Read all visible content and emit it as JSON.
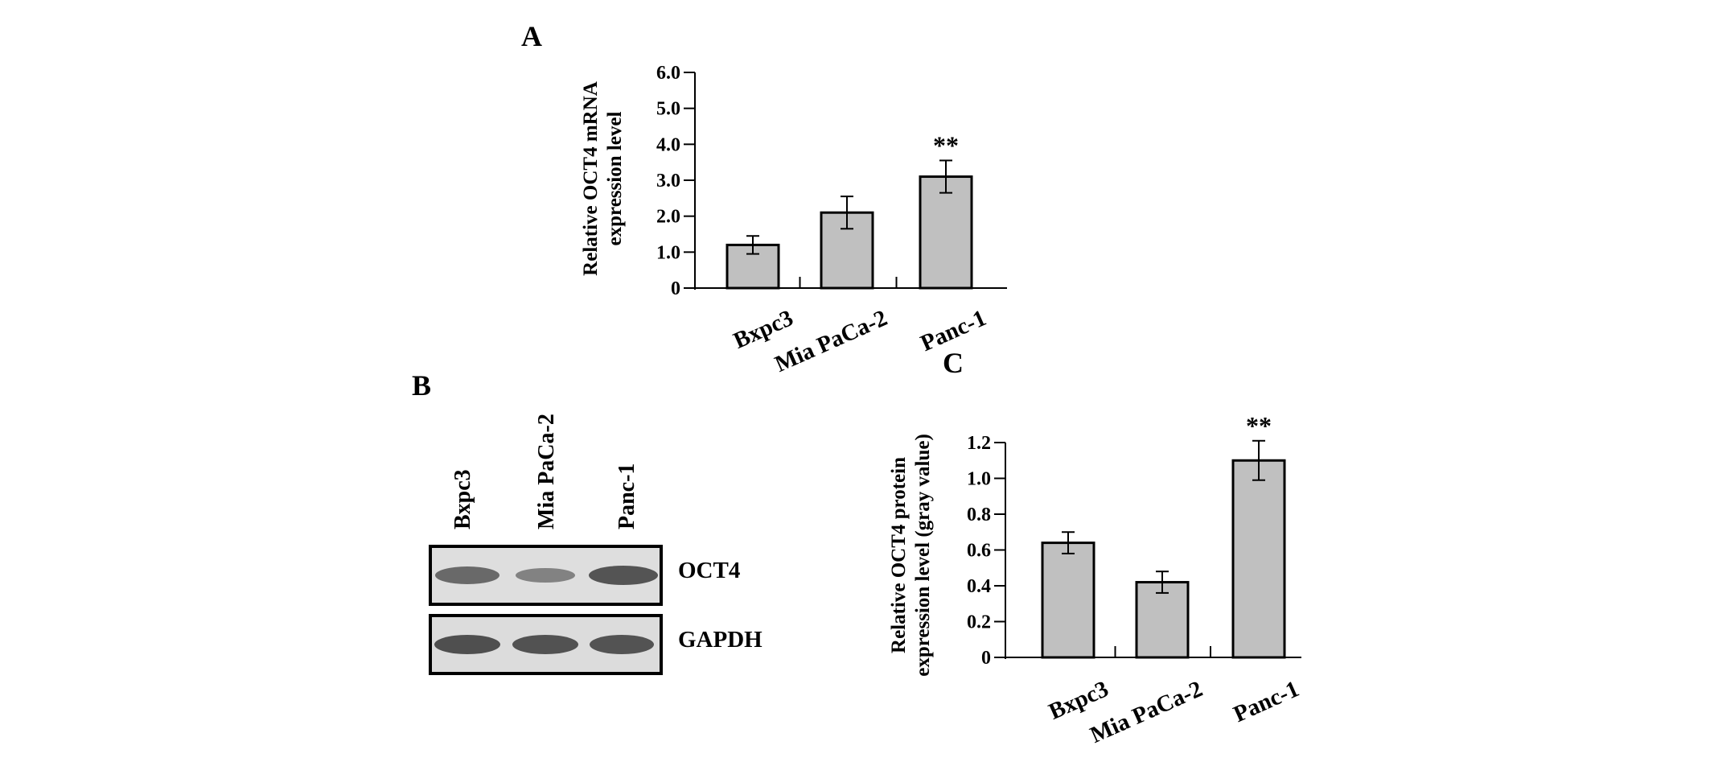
{
  "panels": {
    "a": {
      "letter": "A"
    },
    "b": {
      "letter": "B"
    },
    "c": {
      "letter": "C"
    }
  },
  "chart_data": [
    {
      "panel": "A",
      "type": "bar",
      "categories": [
        "Bxpc3",
        "Mia PaCa-2",
        "Panc-1"
      ],
      "values": [
        1.2,
        2.1,
        3.1
      ],
      "errors": [
        0.25,
        0.45,
        0.45
      ],
      "significance": [
        "",
        "",
        "**"
      ],
      "ylabel": [
        "Relative OCT4 mRNA",
        "expression level"
      ],
      "ylim": [
        0,
        6.0
      ],
      "yticks": [
        0,
        1.0,
        2.0,
        3.0,
        4.0,
        5.0,
        6.0
      ],
      "ytick_labels": [
        "0",
        "1.0",
        "2.0",
        "3.0",
        "4.0",
        "5.0",
        "6.0"
      ],
      "bar_color": "#c0c0c0",
      "grid": false
    },
    {
      "panel": "C",
      "type": "bar",
      "categories": [
        "Bxpc3",
        "Mia PaCa-2",
        "Panc-1"
      ],
      "values": [
        0.64,
        0.42,
        1.1
      ],
      "errors": [
        0.06,
        0.06,
        0.11
      ],
      "significance": [
        "",
        "",
        "**"
      ],
      "ylabel": [
        "Relative OCT4 protein",
        "expression level (gray value)"
      ],
      "ylim": [
        0,
        1.2
      ],
      "yticks": [
        0,
        0.2,
        0.4,
        0.6,
        0.8,
        1.0,
        1.2
      ],
      "ytick_labels": [
        "0",
        "0.2",
        "0.4",
        "0.6",
        "0.8",
        "1.0",
        "1.2"
      ],
      "bar_color": "#c0c0c0",
      "grid": false
    }
  ],
  "blot": {
    "lanes": [
      "Bxpc3",
      "Mia PaCa-2",
      "Panc-1"
    ],
    "rows": [
      {
        "label": "OCT4",
        "intensity": [
          0.75,
          0.55,
          0.9
        ]
      },
      {
        "label": "GAPDH",
        "intensity": [
          0.9,
          0.88,
          0.88
        ]
      }
    ]
  }
}
